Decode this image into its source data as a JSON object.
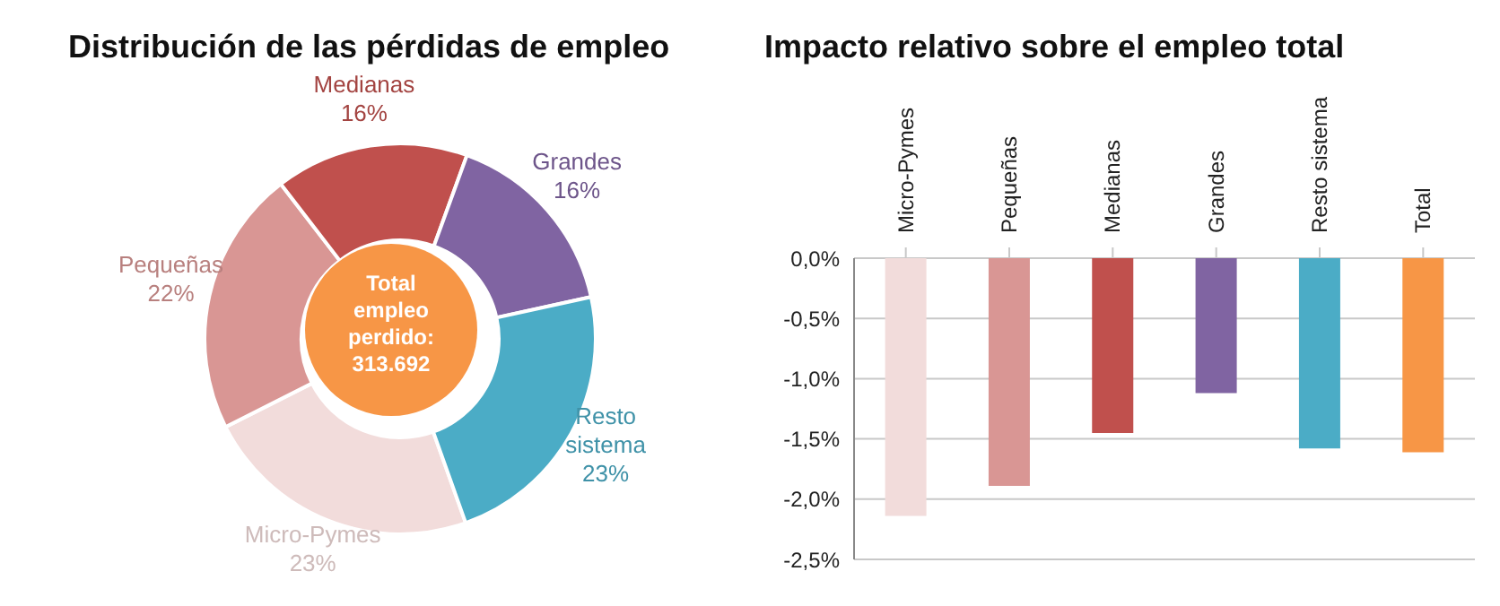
{
  "chart_data": [
    {
      "type": "donut",
      "title": "Distribución de las pérdidas de empleo",
      "categories": [
        "Micro-Pymes",
        "Pequeñas",
        "Medianas",
        "Grandes",
        "Resto sistema"
      ],
      "values": [
        23,
        22,
        16,
        16,
        23
      ],
      "colors": [
        "#f2dcdb",
        "#d99694",
        "#c0504d",
        "#8064a2",
        "#4bacc6"
      ],
      "value_labels": [
        "23%",
        "22%",
        "16%",
        "16%",
        "23%"
      ],
      "legend": false,
      "annotations": [
        "Total empleo perdido: 313.692"
      ]
    },
    {
      "type": "bar",
      "title": "Impacto relativo sobre el empleo total",
      "categories": [
        "Micro-Pymes",
        "Pequeñas",
        "Medianas",
        "Grandes",
        "Resto sistema",
        "Total"
      ],
      "values": [
        -2.14,
        -1.89,
        -1.45,
        -1.12,
        -1.58,
        -1.61
      ],
      "colors": [
        "#f2dcdb",
        "#d99694",
        "#c0504d",
        "#8064a2",
        "#4bacc6",
        "#f79646"
      ],
      "ylim": [
        -2.5,
        0
      ],
      "yticks": [
        {
          "value": 0,
          "label": "0,0%"
        },
        {
          "value": -0.5,
          "label": "-0,5%"
        },
        {
          "value": -1,
          "label": "-1,0%"
        },
        {
          "value": -1.5,
          "label": "-1,5%"
        },
        {
          "value": -2,
          "label": "-2,0%"
        },
        {
          "value": -2.5,
          "label": "-2,5%"
        }
      ],
      "grid": "y",
      "legend": false
    }
  ]
}
